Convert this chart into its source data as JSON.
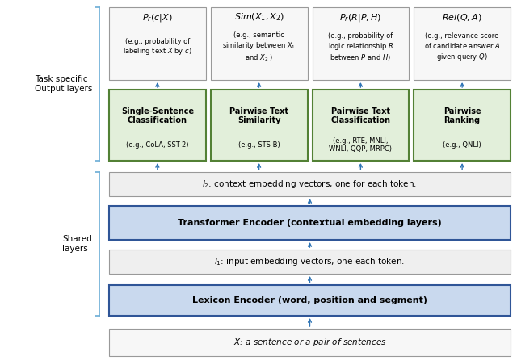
{
  "fig_width": 6.4,
  "fig_height": 4.47,
  "dpi": 100,
  "bg_color": "#ffffff",
  "colors": {
    "blue_box_fill": "#c9d9ee",
    "blue_box_edge": "#2f5597",
    "green_box_fill": "#e2efda",
    "green_box_edge": "#538135",
    "gray_box_fill": "#efefef",
    "gray_box_edge": "#999999",
    "white_box_fill": "#f7f7f7",
    "white_box_edge": "#999999",
    "arrow_color": "#2e74b5",
    "bracket_color": "#6badd6",
    "text_color": "#000000"
  },
  "label_left_task": "Task specific\nOutput layers",
  "label_left_shared": "Shared\nlayers",
  "top_boxes": [
    {
      "title": "$P_r(c|X)$",
      "subtitle": "(e.g., probability of\nlabeling text $X$ by $c$)",
      "col": 0
    },
    {
      "title": "$Sim(X_1, X_2)$",
      "subtitle": "(e.g., semantic\nsimilarity between $X_1$\nand $X_2$ )",
      "col": 1
    },
    {
      "title": "$P_r(R|P, H)$",
      "subtitle": "(e.g., probability of\nlogic relationship $R$\nbetween $P$ and $H$)",
      "col": 2
    },
    {
      "title": "$Rel(Q, A)$",
      "subtitle": "(e.g., relevance score\nof candidate answer $A$\ngiven query $Q$)",
      "col": 3
    }
  ],
  "green_boxes": [
    {
      "title": "Single-Sentence\nClassification",
      "subtitle": "(e.g., CoLA, SST-2)",
      "col": 0
    },
    {
      "title": "Pairwise Text\nSimilarity",
      "subtitle": "(e.g., STS-B)",
      "col": 1
    },
    {
      "title": "Pairwise Text\nClassification",
      "subtitle": "(e.g., RTE, MNLI,\nWNLI, QQP, MRPC)",
      "col": 2
    },
    {
      "title": "Pairwise\nRanking",
      "subtitle": "(e.g., QNLI)",
      "col": 3
    }
  ],
  "l2_text": "$l_2$: context embedding vectors, one for each token.",
  "transformer_text": "Transformer Encoder (contextual embedding layers)",
  "l1_text": "$l_1$: input embedding vectors, one each token.",
  "lexicon_text": "Lexicon Encoder (word, position and segment)",
  "bottom_text": "$X$: a sentence or a pair of sentences"
}
